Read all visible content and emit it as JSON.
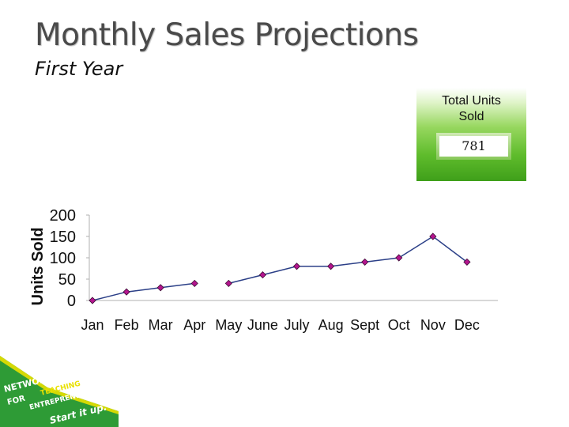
{
  "slide": {
    "title": "Monthly Sales Projections",
    "subtitle": "First Year"
  },
  "total_box": {
    "label_line1": "Total Units",
    "label_line2": "Sold",
    "value": "781"
  },
  "logo": {
    "text_line1": "NETWORK",
    "text_line2": "FOR",
    "text_line3": "TEACHING",
    "text_line4": "ENTREPRENEURSHIP",
    "tagline": "Start it up."
  },
  "colors": {
    "line": "#2b3f87",
    "marker": "#b4158e",
    "axis": "#b0b0b0",
    "box_green": "#5fbc2c",
    "logo_green": "#2e9b36",
    "logo_yellow": "#e8e000"
  },
  "chart_data": {
    "type": "line",
    "title": "",
    "xlabel": "",
    "ylabel": "Units Sold",
    "categories": [
      "Jan",
      "Feb",
      "Mar",
      "Apr",
      "May",
      "June",
      "July",
      "Aug",
      "Sept",
      "Oct",
      "Nov",
      "Dec"
    ],
    "segments": [
      [
        0,
        3
      ],
      [
        4,
        11
      ]
    ],
    "series": [
      {
        "values": [
          0,
          20,
          30,
          40,
          40,
          60,
          80,
          80,
          90,
          100,
          150,
          90
        ]
      }
    ],
    "y_ticks": [
      "0",
      "50",
      "100",
      "150",
      "200"
    ],
    "ylim": [
      0,
      200
    ],
    "grid": false,
    "legend": "none"
  }
}
